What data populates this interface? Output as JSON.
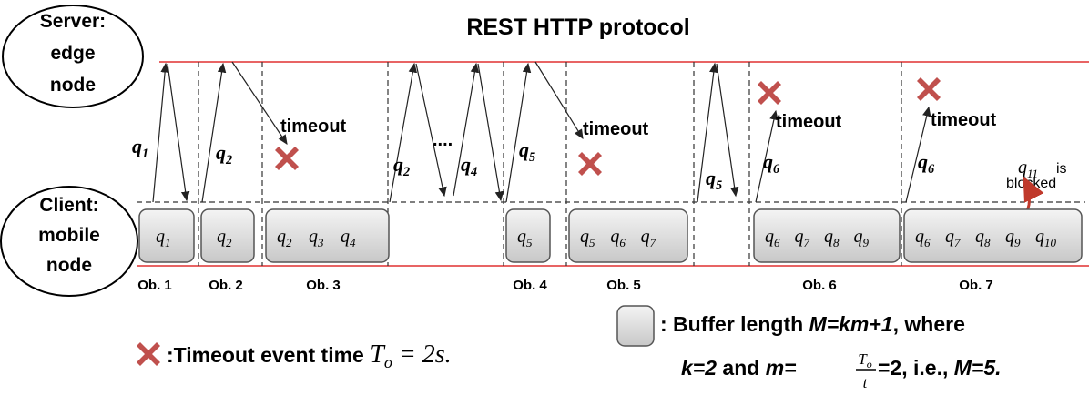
{
  "title": "REST HTTP protocol",
  "server": {
    "lines": [
      "Server:",
      "edge",
      "node"
    ]
  },
  "client": {
    "lines": [
      "Client:",
      "mobile",
      "node"
    ]
  },
  "arrow_labels": [
    {
      "var": "q",
      "sub": "1"
    },
    {
      "var": "q",
      "sub": "2"
    },
    {
      "var": "q",
      "sub": "2"
    },
    {
      "var": "q",
      "sub": "4"
    },
    {
      "var": "q",
      "sub": "5"
    },
    {
      "var": "q",
      "sub": "5"
    },
    {
      "var": "q",
      "sub": "6"
    },
    {
      "var": "q",
      "sub": "6"
    }
  ],
  "dots": "....",
  "timeouts": [
    "timeout",
    "timeout",
    "timeout",
    "timeout"
  ],
  "blocked": {
    "var": "q",
    "sub": "11",
    "lines": [
      "is",
      "blocked"
    ]
  },
  "buffers": [
    {
      "items": [
        {
          "var": "q",
          "sub": "1"
        }
      ]
    },
    {
      "items": [
        {
          "var": "q",
          "sub": "2"
        }
      ]
    },
    {
      "items": [
        {
          "var": "q",
          "sub": "2"
        },
        {
          "var": "q",
          "sub": "3"
        },
        {
          "var": "q",
          "sub": "4"
        }
      ]
    },
    {
      "items": [
        {
          "var": "q",
          "sub": "5"
        }
      ]
    },
    {
      "items": [
        {
          "var": "q",
          "sub": "5"
        },
        {
          "var": "q",
          "sub": "6"
        },
        {
          "var": "q",
          "sub": "7"
        }
      ]
    },
    {
      "items": [
        {
          "var": "q",
          "sub": "6"
        },
        {
          "var": "q",
          "sub": "7"
        },
        {
          "var": "q",
          "sub": "8"
        },
        {
          "var": "q",
          "sub": "9"
        }
      ]
    },
    {
      "items": [
        {
          "var": "q",
          "sub": "6"
        },
        {
          "var": "q",
          "sub": "7"
        },
        {
          "var": "q",
          "sub": "8"
        },
        {
          "var": "q",
          "sub": "9"
        },
        {
          "var": "q",
          "sub": "10"
        }
      ]
    }
  ],
  "observations": [
    "Ob. 1",
    "Ob. 2",
    "Ob. 3",
    "Ob. 4",
    "Ob. 5",
    "Ob. 6",
    "Ob. 7"
  ],
  "legend": {
    "timeout": {
      "text": ":Timeout event time ",
      "var": "T",
      "sub": "o",
      "rest": " = 2s."
    },
    "buffer": {
      "text": ": Buffer length ",
      "formula": "M=km+1",
      "where": ", where",
      "k": "k=2",
      "and": " and ",
      "m": "m=",
      "num": "T",
      "num_sub": "o",
      "den": "t",
      "rest": "=2, i.e., ",
      "result": "M=5."
    }
  }
}
